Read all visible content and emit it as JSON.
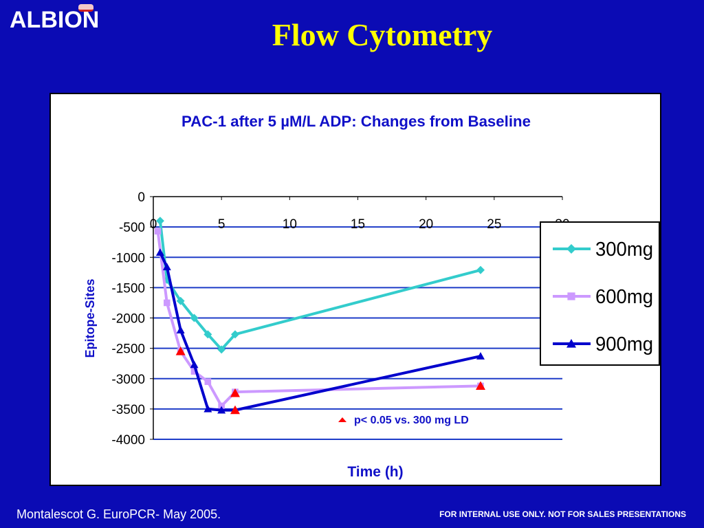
{
  "slide": {
    "logo": "ALBION",
    "title": "Flow Cytometry",
    "footer_left": "Montalescot G. EuroPCR- May 2005.",
    "footer_right": "FOR INTERNAL USE ONLY. NOT FOR SALES PRESENTATIONS"
  },
  "colors": {
    "background": "#0b0bb4",
    "title": "#ffff00",
    "chart_text": "#1010c8",
    "significance": "#ff0000"
  },
  "chart_data": {
    "type": "line",
    "title": "PAC-1 after 5 µM/L ADP: Changes from Baseline",
    "xlabel": "Time (h)",
    "ylabel": "Epitope-Sites",
    "xlim": [
      0,
      30
    ],
    "ylim": [
      -4000,
      0
    ],
    "xticks": [
      0,
      5,
      10,
      15,
      20,
      25,
      30
    ],
    "yticks": [
      0,
      -500,
      -1000,
      -1500,
      -2000,
      -2500,
      -3000,
      -3500,
      -4000
    ],
    "grid": "horizontal",
    "legend_position": "right",
    "series": [
      {
        "name": "300mg",
        "color": "#33cccc",
        "marker": "diamond",
        "points": [
          [
            0.5,
            -400
          ],
          [
            1,
            -1370
          ],
          [
            2,
            -1720
          ],
          [
            3,
            -2000
          ],
          [
            4,
            -2270
          ],
          [
            5,
            -2520
          ],
          [
            6,
            -2270
          ],
          [
            24,
            -1210
          ]
        ]
      },
      {
        "name": "600mg",
        "color": "#cc99ff",
        "marker": "square",
        "points": [
          [
            0.33,
            -570
          ],
          [
            1,
            -1750
          ],
          [
            2,
            -2550
          ],
          [
            3,
            -2880
          ],
          [
            4,
            -3050
          ],
          [
            5,
            -3450
          ],
          [
            6,
            -3220
          ],
          [
            24,
            -3120
          ]
        ]
      },
      {
        "name": "900mg",
        "color": "#0000cc",
        "marker": "triangle",
        "points": [
          [
            0.5,
            -920
          ],
          [
            1,
            -1160
          ],
          [
            2,
            -2200
          ],
          [
            3,
            -2770
          ],
          [
            4,
            -3500
          ],
          [
            5,
            -3520
          ],
          [
            6,
            -3520
          ],
          [
            24,
            -2630
          ]
        ]
      }
    ],
    "significance_markers": {
      "label": "p< 0.05 vs. 300 mg LD",
      "color": "#ff0000",
      "points": [
        [
          2,
          -2550
        ],
        [
          6,
          -3240
        ],
        [
          6,
          -3520
        ],
        [
          24,
          -3120
        ]
      ]
    }
  }
}
